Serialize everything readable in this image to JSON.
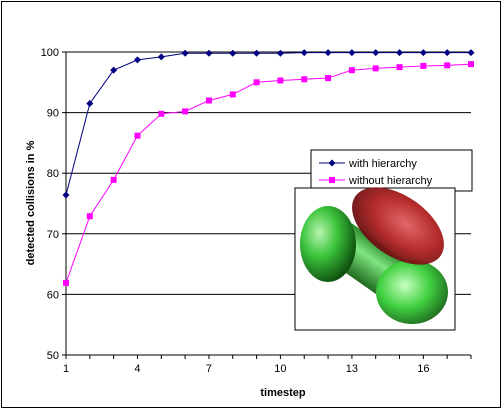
{
  "chart_data": {
    "type": "line",
    "xlabel": "timestep",
    "ylabel": "detected collisions in %",
    "xlim": [
      1,
      18
    ],
    "ylim": [
      50,
      100
    ],
    "x_ticks": [
      1,
      4,
      7,
      10,
      13,
      16
    ],
    "y_ticks": [
      50,
      60,
      70,
      80,
      90,
      100
    ],
    "grid": "horizontal",
    "legend_position": "right-middle",
    "inset_image": "green capsule and red ellipsoid colliding",
    "series": [
      {
        "name": "with hierarchy",
        "color": "#000080",
        "marker": "diamond",
        "x": [
          1,
          2,
          3,
          4,
          5,
          6,
          7,
          8,
          9,
          10,
          11,
          12,
          13,
          14,
          15,
          16,
          17,
          18
        ],
        "values": [
          76.4,
          91.5,
          97.0,
          98.7,
          99.2,
          99.8,
          99.8,
          99.8,
          99.8,
          99.8,
          99.9,
          99.9,
          99.9,
          99.9,
          99.9,
          99.9,
          99.9,
          99.9
        ]
      },
      {
        "name": "without hierarchy",
        "color": "#FF00FF",
        "marker": "square",
        "x": [
          1,
          2,
          3,
          4,
          5,
          6,
          7,
          8,
          9,
          10,
          11,
          12,
          13,
          14,
          15,
          16,
          17,
          18
        ],
        "values": [
          61.9,
          72.9,
          78.9,
          86.2,
          89.8,
          90.2,
          92.0,
          93.0,
          95.0,
          95.3,
          95.5,
          95.7,
          97.0,
          97.3,
          97.5,
          97.7,
          97.8,
          98.0
        ]
      }
    ]
  }
}
